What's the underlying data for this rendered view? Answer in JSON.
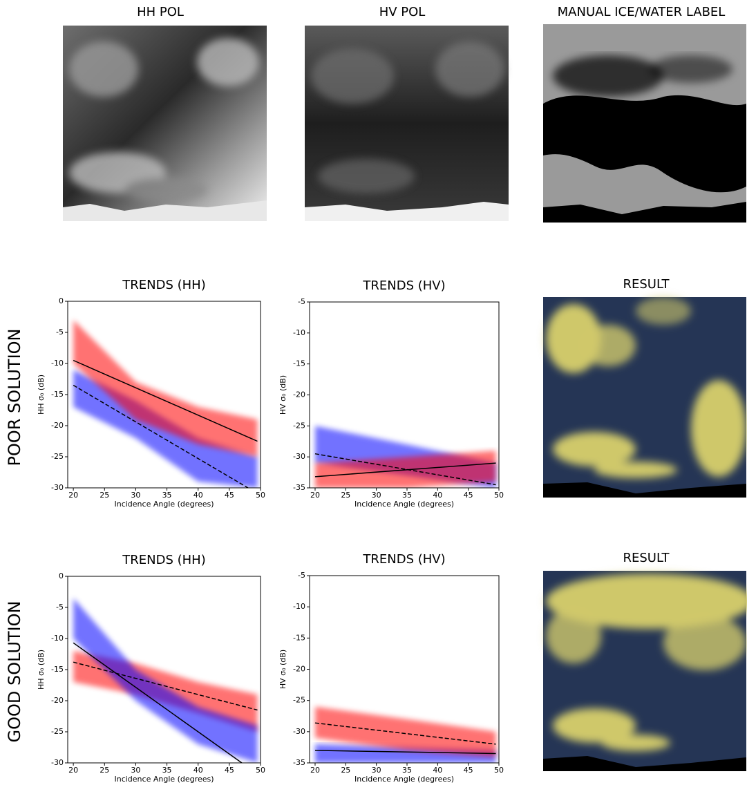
{
  "images": [
    {
      "title": "HH POL"
    },
    {
      "title": "HV POL"
    },
    {
      "title": "MANUAL ICE/WATER LABEL"
    },
    {
      "title": "RESULT"
    },
    {
      "title": "RESULT"
    }
  ],
  "row_labels": [
    "POOR SOLUTION",
    "GOOD SOLUTION"
  ],
  "chart_data": [
    {
      "type": "scatter",
      "title": "TRENDS (HH)",
      "x_label": "Incidence Angle (degrees)",
      "y_label": "HH σ₀ (dB)",
      "xlim": [
        19.1,
        50
      ],
      "ylim": [
        -30,
        0
      ],
      "xticks": [
        20,
        25,
        30,
        35,
        40,
        45,
        50
      ],
      "yticks": [
        0,
        -5,
        -10,
        -15,
        -20,
        -25,
        -30
      ],
      "clouds": [
        {
          "color": "#0000ff",
          "x": [
            20,
            30,
            40,
            49.5
          ],
          "low": [
            -17,
            -22,
            -29,
            -30
          ],
          "high": [
            -11,
            -16,
            -22,
            -25
          ]
        },
        {
          "color": "#ff0000",
          "x": [
            20,
            30,
            40,
            49.5
          ],
          "low": [
            -10,
            -19,
            -23,
            -25
          ],
          "high": [
            -3,
            -13,
            -17,
            -19
          ]
        }
      ],
      "trends": [
        {
          "color": "#000000",
          "dash": false,
          "x": [
            20,
            49.5
          ],
          "y": [
            -9.5,
            -22.5
          ]
        },
        {
          "color": "#000000",
          "dash": true,
          "x": [
            20,
            48
          ],
          "y": [
            -13.5,
            -30
          ]
        }
      ]
    },
    {
      "type": "scatter",
      "title": "TRENDS (HV)",
      "x_label": "Incidence Angle (degrees)",
      "y_label": "HV σ₀ (dB)",
      "xlim": [
        19.1,
        50
      ],
      "ylim": [
        -35,
        -5
      ],
      "xticks": [
        20,
        25,
        30,
        35,
        40,
        45,
        50
      ],
      "yticks": [
        -5,
        -10,
        -15,
        -20,
        -25,
        -30,
        -35
      ],
      "clouds": [
        {
          "color": "#0000ff",
          "x": [
            20,
            35,
            49.5
          ],
          "low": [
            -31,
            -33,
            -35
          ],
          "high": [
            -25,
            -28,
            -31
          ]
        },
        {
          "color": "#ff0000",
          "x": [
            20,
            35,
            49.5
          ],
          "low": [
            -35,
            -35,
            -34
          ],
          "high": [
            -31,
            -30,
            -29
          ]
        }
      ],
      "trends": [
        {
          "color": "#000000",
          "dash": false,
          "x": [
            20,
            49.5
          ],
          "y": [
            -33.2,
            -31
          ]
        },
        {
          "color": "#000000",
          "dash": true,
          "x": [
            20,
            49.5
          ],
          "y": [
            -29.5,
            -34.5
          ]
        }
      ]
    },
    {
      "type": "scatter",
      "title": "TRENDS (HH)",
      "x_label": "Incidence Angle (degrees)",
      "y_label": "HH σ₀ (dB)",
      "xlim": [
        19.1,
        50
      ],
      "ylim": [
        -30,
        0
      ],
      "xticks": [
        20,
        25,
        30,
        35,
        40,
        45,
        50
      ],
      "yticks": [
        0,
        -5,
        -10,
        -15,
        -20,
        -25,
        -30
      ],
      "clouds": [
        {
          "color": "#ff0000",
          "x": [
            20,
            30,
            40,
            49.5
          ],
          "low": [
            -17,
            -19,
            -22,
            -25
          ],
          "high": [
            -12,
            -14,
            -17,
            -19
          ]
        },
        {
          "color": "#0000ff",
          "x": [
            20,
            30,
            40,
            49.5
          ],
          "low": [
            -10,
            -20,
            -27,
            -30
          ],
          "high": [
            -3.5,
            -15,
            -21,
            -24
          ]
        }
      ],
      "trends": [
        {
          "color": "#000000",
          "dash": false,
          "x": [
            20,
            47
          ],
          "y": [
            -10.7,
            -30
          ]
        },
        {
          "color": "#000000",
          "dash": true,
          "x": [
            20,
            49.5
          ],
          "y": [
            -13.8,
            -21.5
          ]
        }
      ]
    },
    {
      "type": "scatter",
      "title": "TRENDS (HV)",
      "x_label": "Incidence Angle (degrees)",
      "y_label": "HV σ₀ (dB)",
      "xlim": [
        19.1,
        50
      ],
      "ylim": [
        -35,
        -5
      ],
      "xticks": [
        20,
        25,
        30,
        35,
        40,
        45,
        50
      ],
      "yticks": [
        -5,
        -10,
        -15,
        -20,
        -25,
        -30,
        -35
      ],
      "clouds": [
        {
          "color": "#0000ff",
          "x": [
            20,
            49.5
          ],
          "low": [
            -35,
            -35
          ],
          "high": [
            -32,
            -33
          ]
        },
        {
          "color": "#ff0000",
          "x": [
            20,
            35,
            49.5
          ],
          "low": [
            -31,
            -33,
            -34
          ],
          "high": [
            -26,
            -28,
            -30
          ]
        }
      ],
      "trends": [
        {
          "color": "#000000",
          "dash": true,
          "x": [
            20,
            49.5
          ],
          "y": [
            -28.6,
            -32
          ]
        },
        {
          "color": "#000000",
          "dash": false,
          "x": [
            20,
            49.5
          ],
          "y": [
            -33,
            -33.5
          ]
        }
      ]
    }
  ]
}
